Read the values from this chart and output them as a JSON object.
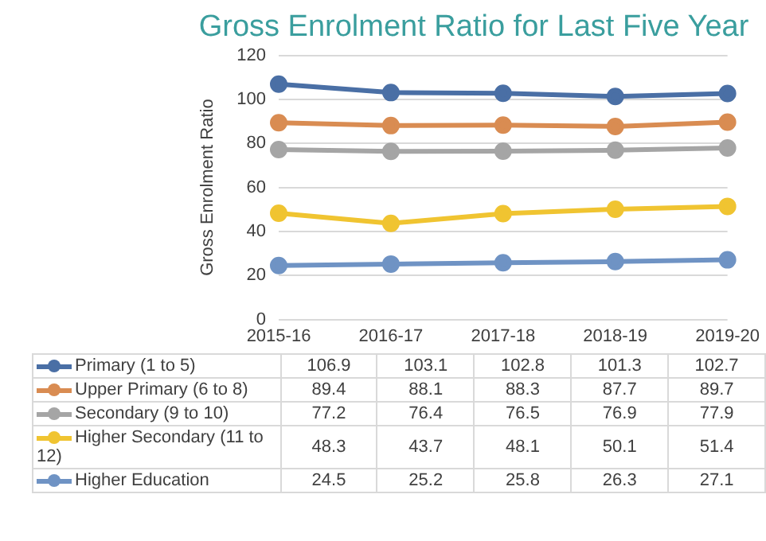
{
  "chart_data": {
    "type": "line",
    "title": "Gross Enrolment Ratio for Last Five Year",
    "ylabel": "Gross Enrolment Ratio",
    "categories": [
      "2015-16",
      "2016-17",
      "2017-18",
      "2018-19",
      "2019-20"
    ],
    "series": [
      {
        "name": "Primary  (1 to 5)",
        "color": "#4a6fa5",
        "values": [
          106.9,
          103.1,
          102.8,
          101.3,
          102.7
        ]
      },
      {
        "name": "Upper Primary  (6 to 8)",
        "color": "#d98c52",
        "values": [
          89.4,
          88.1,
          88.3,
          87.7,
          89.7
        ]
      },
      {
        "name": "Secondary  (9 to 10)",
        "color": "#a5a5a5",
        "values": [
          77.2,
          76.4,
          76.5,
          76.9,
          77.9
        ]
      },
      {
        "name": "Higher Secondary (11 to 12)",
        "color": "#f0c431",
        "values": [
          48.3,
          43.7,
          48.1,
          50.1,
          51.4
        ]
      },
      {
        "name": "Higher Education",
        "color": "#6f93c4",
        "values": [
          24.5,
          25.2,
          25.8,
          26.3,
          27.1
        ]
      }
    ],
    "ylim": [
      0,
      120
    ],
    "yticks": [
      0,
      20,
      40,
      60,
      80,
      100,
      120
    ],
    "grid": "y",
    "legend": "bottom",
    "marker": "circle",
    "line_style": "solid",
    "data_labels": true
  }
}
